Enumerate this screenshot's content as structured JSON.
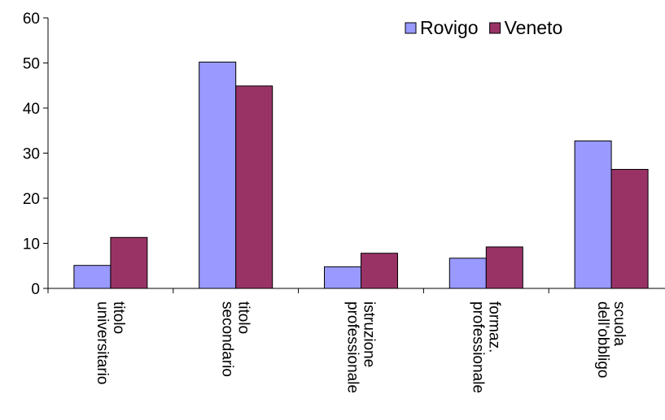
{
  "chart_data": {
    "type": "bar",
    "title": "",
    "xlabel": "",
    "ylabel": "",
    "ylim": [
      0,
      60
    ],
    "yticks": [
      0,
      10,
      20,
      30,
      40,
      50,
      60
    ],
    "grid": false,
    "legend_position": "top-right",
    "categories": [
      [
        "titolo",
        "universitario"
      ],
      [
        "titolo",
        "secondario"
      ],
      [
        "istruzione",
        "professionale"
      ],
      [
        "formaz.",
        "professionale"
      ],
      [
        "scuola",
        "dell'obbligo"
      ]
    ],
    "series": [
      {
        "name": "Rovigo",
        "color": "#9999ff",
        "values": [
          5.1,
          50.2,
          4.8,
          6.7,
          32.7
        ]
      },
      {
        "name": "Veneto",
        "color": "#993366",
        "values": [
          11.3,
          44.9,
          7.8,
          9.2,
          26.4
        ]
      }
    ]
  }
}
